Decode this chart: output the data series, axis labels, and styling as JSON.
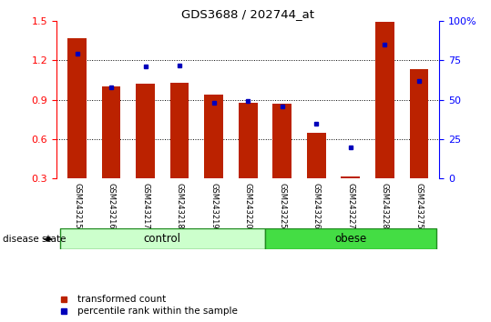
{
  "title": "GDS3688 / 202744_at",
  "samples": [
    "GSM243215",
    "GSM243216",
    "GSM243217",
    "GSM243218",
    "GSM243219",
    "GSM243220",
    "GSM243225",
    "GSM243226",
    "GSM243227",
    "GSM243228",
    "GSM243275"
  ],
  "red_values": [
    1.37,
    1.0,
    1.02,
    1.03,
    0.94,
    0.88,
    0.87,
    0.65,
    0.32,
    1.49,
    1.13
  ],
  "blue_percentiles": [
    79,
    58,
    71,
    72,
    48,
    49,
    46,
    35,
    20,
    85,
    62
  ],
  "ylim_left": [
    0.3,
    1.5
  ],
  "ylim_right": [
    0,
    100
  ],
  "yticks_left": [
    0.3,
    0.6,
    0.9,
    1.2,
    1.5
  ],
  "yticks_right": [
    0,
    25,
    50,
    75,
    100
  ],
  "ytick_labels_right": [
    "0",
    "25",
    "50",
    "75",
    "100%"
  ],
  "control_label": "control",
  "obese_label": "obese",
  "disease_state_label": "disease state",
  "legend_red": "transformed count",
  "legend_blue": "percentile rank within the sample",
  "bar_color": "#BB2200",
  "dot_color": "#0000BB",
  "control_bg_light": "#CCFFCC",
  "obese_bg": "#44DD44",
  "tick_bg": "#CCCCCC",
  "bar_width": 0.55,
  "n_control": 6,
  "n_obese": 5
}
